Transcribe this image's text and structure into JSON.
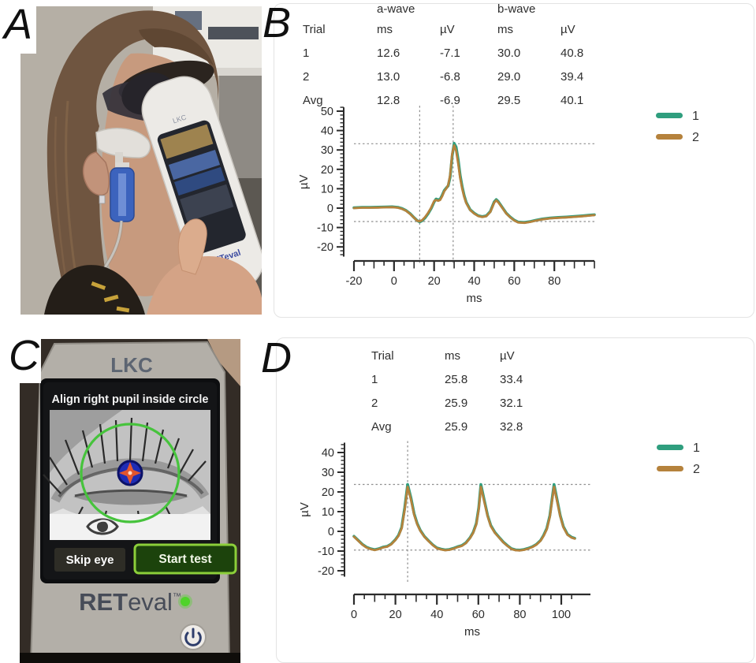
{
  "panels": {
    "a": {
      "label": "A"
    },
    "b": {
      "label": "B"
    },
    "c": {
      "label": "C"
    },
    "d": {
      "label": "D"
    }
  },
  "panelA": {
    "device_top_brand": "LKC",
    "device_brand": "RETeval"
  },
  "panelB": {
    "table": {
      "group_headers": [
        "a-wave",
        "b-wave"
      ],
      "columns": [
        "Trial",
        "ms",
        "µV",
        "ms",
        "µV"
      ],
      "rows": [
        [
          "1",
          "12.6",
          "-7.1",
          "30.0",
          "40.8"
        ],
        [
          "2",
          "13.0",
          "-6.8",
          "29.0",
          "39.4"
        ],
        [
          "Avg",
          "12.8",
          "-6.9",
          "29.5",
          "40.1"
        ]
      ]
    }
  },
  "panelC": {
    "device_top_brand": "LKC",
    "screen_title": "Align right pupil inside circle",
    "buttons": {
      "skip": "Skip eye",
      "start": "Start test"
    },
    "brand_ret": "RET",
    "brand_eval": "eval",
    "brand_tm": "™"
  },
  "panelD": {
    "table": {
      "columns": [
        "Trial",
        "ms",
        "µV"
      ],
      "rows": [
        [
          "1",
          "25.8",
          "33.4"
        ],
        [
          "2",
          "25.9",
          "32.1"
        ],
        [
          "Avg",
          "25.9",
          "32.8"
        ]
      ]
    }
  },
  "colors": {
    "trial1": "#2f9e7e",
    "trial2": "#b5823c",
    "cursor": "#8f8f8f",
    "axis": "#2b2b2b",
    "alignment_circle": "#46c33c",
    "pupil_target_blue": "#1f2cb5",
    "start_button_green": "#8ccf3a",
    "led_green": "#4fd32a"
  },
  "chart_data": [
    {
      "id": "B",
      "type": "line",
      "title": "",
      "xlabel": "ms",
      "ylabel": "µV",
      "xlim": [
        -20,
        100
      ],
      "ylim": [
        -25,
        52
      ],
      "x_major_ticks": [
        -20,
        0,
        20,
        40,
        60,
        80
      ],
      "x_tick_minor_step": 5,
      "x_tick_max": 100,
      "y_major_ticks": [
        -20,
        -10,
        0,
        10,
        20,
        30,
        40,
        50
      ],
      "y_tick_minor_step": 2,
      "grid": false,
      "legend_position": "top-right",
      "cursor_x_ms": [
        12.8,
        29.5
      ],
      "cursor_y_uv": [
        33.2,
        -6.9
      ],
      "series": [
        {
          "name": "1",
          "color": "#2f9e7e",
          "x": [
            -20,
            -16,
            -12,
            -8,
            -4,
            -1,
            2,
            4,
            6,
            8,
            10,
            11.5,
            12.8,
            14,
            15.5,
            17,
            18.5,
            20,
            21,
            22,
            23,
            24,
            25,
            26,
            27,
            28,
            29,
            30,
            31,
            32,
            33,
            34,
            35,
            36,
            38,
            40,
            42,
            44,
            46,
            48,
            50,
            51,
            52,
            54,
            56,
            58,
            60,
            62,
            65,
            68,
            71,
            74,
            78,
            82,
            86,
            90,
            94,
            97,
            100
          ],
          "y": [
            0.2,
            0.4,
            0.4,
            0.5,
            0.6,
            0.7,
            0.4,
            -0.2,
            -1.2,
            -2.8,
            -4.9,
            -6.4,
            -7.1,
            -6.5,
            -5.0,
            -2.8,
            -0.2,
            3.2,
            4.7,
            4.3,
            4.6,
            6.5,
            9.0,
            10.3,
            11.5,
            16.0,
            27.0,
            33.4,
            31.5,
            25.0,
            17.0,
            11.0,
            6.5,
            3.0,
            -0.8,
            -2.6,
            -3.9,
            -4.4,
            -4.0,
            -1.8,
            3.2,
            4.4,
            3.4,
            0.4,
            -2.6,
            -4.6,
            -6.2,
            -7.2,
            -7.4,
            -6.9,
            -6.2,
            -5.6,
            -5.1,
            -4.8,
            -4.6,
            -4.3,
            -4.0,
            -3.7,
            -3.4
          ]
        },
        {
          "name": "2",
          "color": "#b5823c",
          "x": [
            -20,
            -16,
            -12,
            -8,
            -4,
            -1,
            2,
            4,
            6,
            8,
            10,
            11.5,
            12.8,
            14,
            15.5,
            17,
            18.5,
            20,
            21,
            22,
            23,
            24,
            25,
            26,
            27,
            28,
            29,
            30,
            31,
            32,
            33,
            34,
            35,
            36,
            38,
            40,
            42,
            44,
            46,
            48,
            50,
            51,
            52,
            54,
            56,
            58,
            60,
            62,
            65,
            68,
            71,
            74,
            78,
            82,
            86,
            90,
            94,
            97,
            100
          ],
          "y": [
            0.0,
            0.2,
            0.2,
            0.3,
            0.4,
            0.5,
            0.2,
            -0.4,
            -1.4,
            -3.0,
            -5.0,
            -6.5,
            -6.8,
            -6.2,
            -4.6,
            -2.4,
            0.2,
            3.6,
            4.2,
            3.8,
            4.2,
            6.0,
            8.6,
            10.0,
            11.8,
            17.0,
            28.0,
            32.3,
            29.5,
            23.0,
            15.5,
            10.0,
            5.8,
            2.6,
            -1.0,
            -2.8,
            -4.1,
            -4.6,
            -4.2,
            -2.0,
            2.8,
            4.0,
            3.0,
            0.2,
            -2.8,
            -4.8,
            -6.4,
            -7.4,
            -7.6,
            -7.1,
            -6.4,
            -5.8,
            -5.3,
            -5.0,
            -4.8,
            -4.5,
            -4.2,
            -3.9,
            -3.6
          ]
        }
      ]
    },
    {
      "id": "D",
      "type": "line",
      "title": "",
      "xlabel": "ms",
      "ylabel": "µV",
      "xlim": [
        0,
        107
      ],
      "ylim": [
        -23,
        45
      ],
      "x_major_ticks": [
        0,
        20,
        40,
        60,
        80,
        100
      ],
      "x_tick_minor_step": 5,
      "x_tick_max": 105,
      "y_major_ticks": [
        -20,
        -10,
        0,
        10,
        20,
        30,
        40
      ],
      "y_tick_minor_step": 2,
      "grid": false,
      "legend_position": "top-right",
      "cursor_x_ms": [
        25.9
      ],
      "cursor_y_uv": [
        23.8,
        -9.5
      ],
      "series": [
        {
          "name": "1",
          "color": "#2f9e7e",
          "x": [
            0,
            2,
            4,
            6,
            8,
            10,
            12,
            14,
            16,
            18,
            20,
            21.5,
            23,
            24.5,
            25.9,
            27.5,
            29,
            30.5,
            32,
            34,
            36,
            38,
            40,
            42,
            44,
            46,
            48,
            50,
            52,
            54,
            56,
            57.5,
            59,
            60.2,
            61.2,
            62.8,
            64.5,
            66,
            68,
            70,
            72,
            74,
            76,
            78,
            80,
            82,
            84,
            86,
            88,
            90,
            91.5,
            93,
            94.5,
            96.5,
            98,
            99.5,
            101,
            103,
            105,
            106.5
          ],
          "y": [
            -2.5,
            -4.5,
            -6.5,
            -8.0,
            -8.8,
            -9.3,
            -8.8,
            -8.0,
            -7.6,
            -6.4,
            -4.2,
            -2.0,
            2.0,
            12.0,
            23.8,
            17.0,
            9.0,
            4.0,
            0.5,
            -2.6,
            -4.8,
            -6.8,
            -8.4,
            -9.0,
            -9.4,
            -9.2,
            -8.6,
            -7.8,
            -7.2,
            -5.8,
            -3.2,
            -0.5,
            4.0,
            12.0,
            23.8,
            16.0,
            8.0,
            3.0,
            -0.5,
            -3.0,
            -5.4,
            -7.2,
            -8.8,
            -9.4,
            -9.5,
            -9.2,
            -8.6,
            -7.8,
            -6.6,
            -4.6,
            -2.0,
            1.5,
            8.0,
            23.8,
            16.0,
            8.0,
            2.5,
            -1.5,
            -3.0,
            -3.5
          ]
        },
        {
          "name": "2",
          "color": "#b5823c",
          "x": [
            0,
            2,
            4,
            6,
            8,
            10,
            12,
            14,
            16,
            18,
            20,
            21.5,
            23,
            24.5,
            25.9,
            27.5,
            29,
            30.5,
            32,
            34,
            36,
            38,
            40,
            42,
            44,
            46,
            48,
            50,
            52,
            54,
            56,
            57.5,
            59,
            60.2,
            61.2,
            62.8,
            64.5,
            66,
            68,
            70,
            72,
            74,
            76,
            78,
            80,
            82,
            84,
            86,
            88,
            90,
            91.5,
            93,
            94.5,
            96.5,
            98,
            99.5,
            101,
            103,
            105,
            106.5
          ],
          "y": [
            -2.7,
            -4.7,
            -6.7,
            -8.2,
            -9.0,
            -9.5,
            -9.0,
            -8.2,
            -7.8,
            -6.6,
            -4.4,
            -2.3,
            1.5,
            11.0,
            22.6,
            16.0,
            8.4,
            3.6,
            0.2,
            -2.8,
            -5.0,
            -7.0,
            -8.6,
            -9.2,
            -9.6,
            -9.4,
            -8.8,
            -8.0,
            -7.4,
            -6.0,
            -3.4,
            -0.8,
            3.5,
            11.2,
            22.6,
            15.2,
            7.6,
            2.6,
            -0.8,
            -3.2,
            -5.6,
            -7.4,
            -9.0,
            -9.6,
            -9.7,
            -9.4,
            -8.8,
            -8.0,
            -6.8,
            -4.8,
            -2.3,
            1.0,
            7.4,
            22.6,
            15.2,
            7.6,
            2.1,
            -1.8,
            -3.2,
            -3.7
          ]
        }
      ]
    }
  ]
}
